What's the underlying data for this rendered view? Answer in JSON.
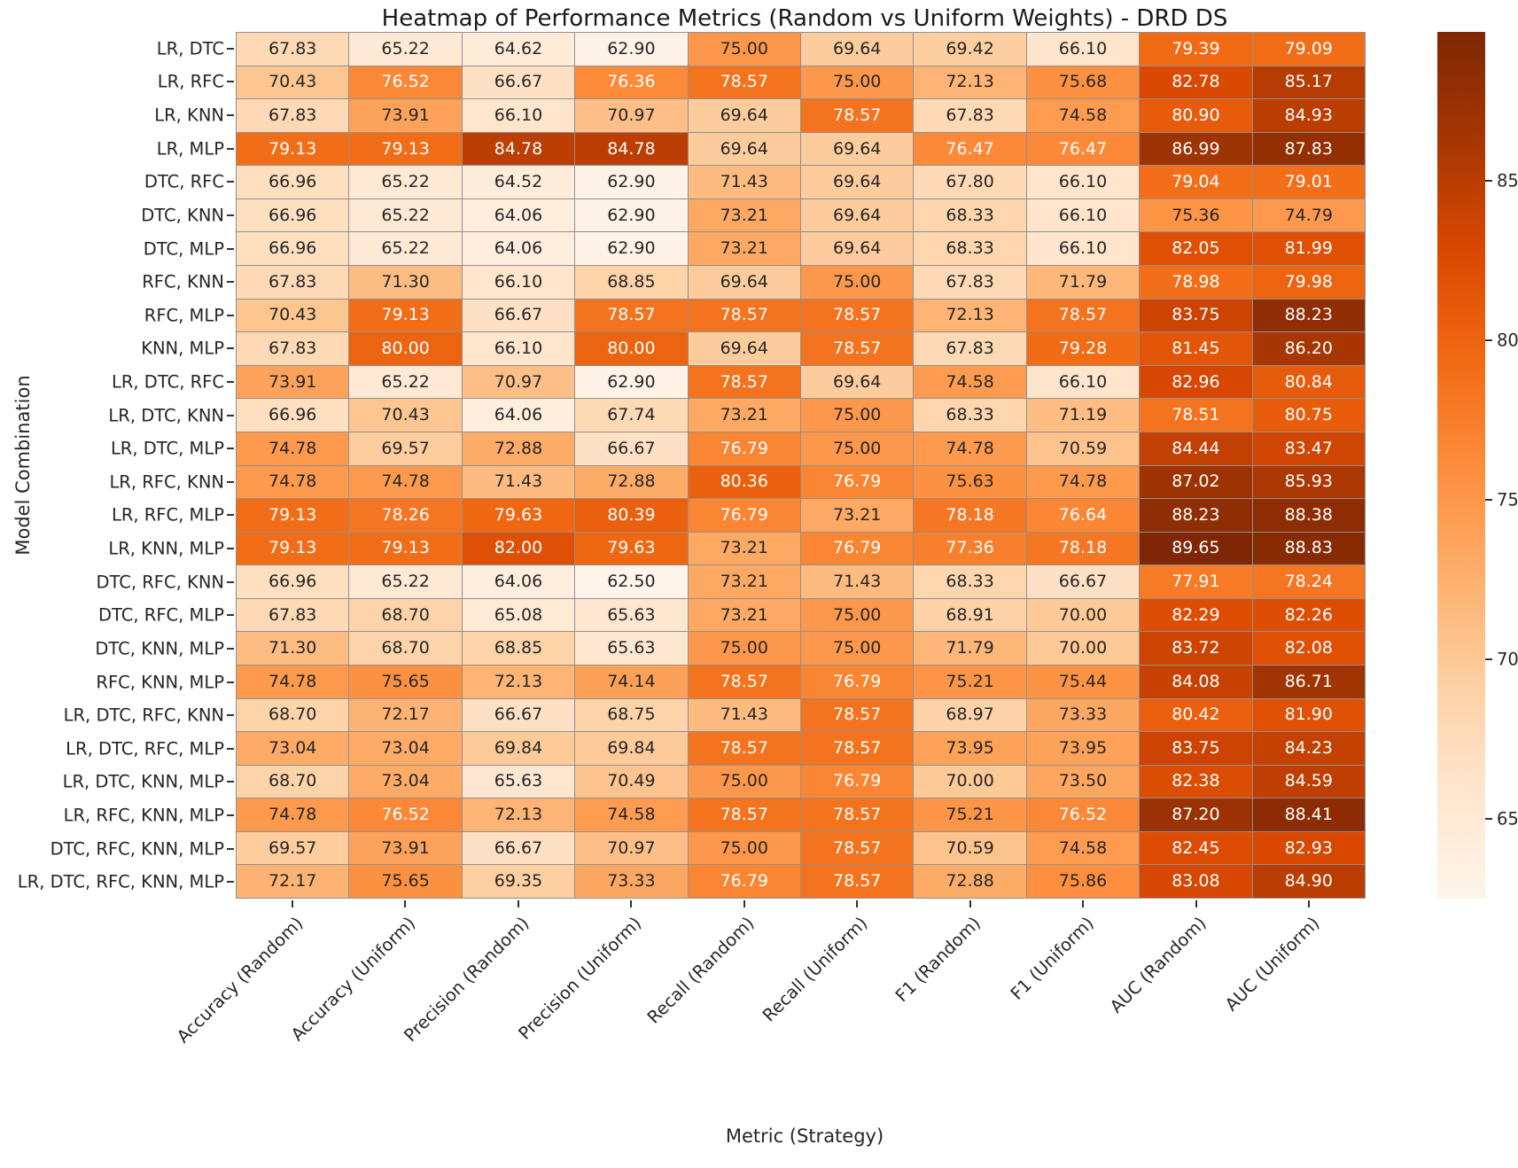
{
  "chart_data": {
    "type": "heatmap",
    "title": "Heatmap of Performance Metrics (Random vs Uniform Weights) - DRD DS",
    "xlabel": "Metric (Strategy)",
    "ylabel": "Model Combination",
    "columns": [
      "Accuracy (Random)",
      "Accuracy (Uniform)",
      "Precision (Random)",
      "Precision (Uniform)",
      "Recall (Random)",
      "Recall (Uniform)",
      "F1 (Random)",
      "F1 (Uniform)",
      "AUC (Random)",
      "AUC (Uniform)"
    ],
    "rows": [
      "LR, DTC",
      "LR, RFC",
      "LR, KNN",
      "LR, MLP",
      "DTC, RFC",
      "DTC, KNN",
      "DTC, MLP",
      "RFC, KNN",
      "RFC, MLP",
      "KNN, MLP",
      "LR, DTC, RFC",
      "LR, DTC, KNN",
      "LR, DTC, MLP",
      "LR, RFC, KNN",
      "LR, RFC, MLP",
      "LR, KNN, MLP",
      "DTC, RFC, KNN",
      "DTC, RFC, MLP",
      "DTC, KNN, MLP",
      "RFC, KNN, MLP",
      "LR, DTC, RFC, KNN",
      "LR, DTC, RFC, MLP",
      "LR, DTC, KNN, MLP",
      "LR, RFC, KNN, MLP",
      "DTC, RFC, KNN, MLP",
      "LR, DTC, RFC, KNN, MLP"
    ],
    "values": [
      [
        67.83,
        65.22,
        64.62,
        62.9,
        75.0,
        69.64,
        69.42,
        66.1,
        79.39,
        79.09
      ],
      [
        70.43,
        76.52,
        66.67,
        76.36,
        78.57,
        75.0,
        72.13,
        75.68,
        82.78,
        85.17
      ],
      [
        67.83,
        73.91,
        66.1,
        70.97,
        69.64,
        78.57,
        67.83,
        74.58,
        80.9,
        84.93
      ],
      [
        79.13,
        79.13,
        84.78,
        84.78,
        69.64,
        69.64,
        76.47,
        76.47,
        86.99,
        87.83
      ],
      [
        66.96,
        65.22,
        64.52,
        62.9,
        71.43,
        69.64,
        67.8,
        66.1,
        79.04,
        79.01
      ],
      [
        66.96,
        65.22,
        64.06,
        62.9,
        73.21,
        69.64,
        68.33,
        66.1,
        75.36,
        74.79
      ],
      [
        66.96,
        65.22,
        64.06,
        62.9,
        73.21,
        69.64,
        68.33,
        66.1,
        82.05,
        81.99
      ],
      [
        67.83,
        71.3,
        66.1,
        68.85,
        69.64,
        75.0,
        67.83,
        71.79,
        78.98,
        79.98
      ],
      [
        70.43,
        79.13,
        66.67,
        78.57,
        78.57,
        78.57,
        72.13,
        78.57,
        83.75,
        88.23
      ],
      [
        67.83,
        80.0,
        66.1,
        80.0,
        69.64,
        78.57,
        67.83,
        79.28,
        81.45,
        86.2
      ],
      [
        73.91,
        65.22,
        70.97,
        62.9,
        78.57,
        69.64,
        74.58,
        66.1,
        82.96,
        80.84
      ],
      [
        66.96,
        70.43,
        64.06,
        67.74,
        73.21,
        75.0,
        68.33,
        71.19,
        78.51,
        80.75
      ],
      [
        74.78,
        69.57,
        72.88,
        66.67,
        76.79,
        75.0,
        74.78,
        70.59,
        84.44,
        83.47
      ],
      [
        74.78,
        74.78,
        71.43,
        72.88,
        80.36,
        76.79,
        75.63,
        74.78,
        87.02,
        85.93
      ],
      [
        79.13,
        78.26,
        79.63,
        80.39,
        76.79,
        73.21,
        78.18,
        76.64,
        88.23,
        88.38
      ],
      [
        79.13,
        79.13,
        82.0,
        79.63,
        73.21,
        76.79,
        77.36,
        78.18,
        89.65,
        88.83
      ],
      [
        66.96,
        65.22,
        64.06,
        62.5,
        73.21,
        71.43,
        68.33,
        66.67,
        77.91,
        78.24
      ],
      [
        67.83,
        68.7,
        65.08,
        65.63,
        73.21,
        75.0,
        68.91,
        70.0,
        82.29,
        82.26
      ],
      [
        71.3,
        68.7,
        68.85,
        65.63,
        75.0,
        75.0,
        71.79,
        70.0,
        83.72,
        82.08
      ],
      [
        74.78,
        75.65,
        72.13,
        74.14,
        78.57,
        76.79,
        75.21,
        75.44,
        84.08,
        86.71
      ],
      [
        68.7,
        72.17,
        66.67,
        68.75,
        71.43,
        78.57,
        68.97,
        73.33,
        80.42,
        81.9
      ],
      [
        73.04,
        73.04,
        69.84,
        69.84,
        78.57,
        78.57,
        73.95,
        73.95,
        83.75,
        84.23
      ],
      [
        68.7,
        73.04,
        65.63,
        70.49,
        75.0,
        76.79,
        70.0,
        73.5,
        82.38,
        84.59
      ],
      [
        74.78,
        76.52,
        72.13,
        74.58,
        78.57,
        78.57,
        75.21,
        76.52,
        87.2,
        88.41
      ],
      [
        69.57,
        73.91,
        66.67,
        70.97,
        75.0,
        78.57,
        70.59,
        74.58,
        82.45,
        82.93
      ],
      [
        72.17,
        75.65,
        69.35,
        73.33,
        76.79,
        78.57,
        72.88,
        75.86,
        83.08,
        84.9
      ]
    ],
    "value_format_decimals": 2,
    "colormap": "Oranges",
    "vmin": 62.5,
    "vmax": 89.65,
    "colorbar_ticks": [
      85,
      80,
      75,
      70,
      65
    ],
    "grid_on": true,
    "legend_position": "colorbar-right",
    "annot_color_dark": "#262626",
    "annot_color_light": "#ffffff"
  }
}
